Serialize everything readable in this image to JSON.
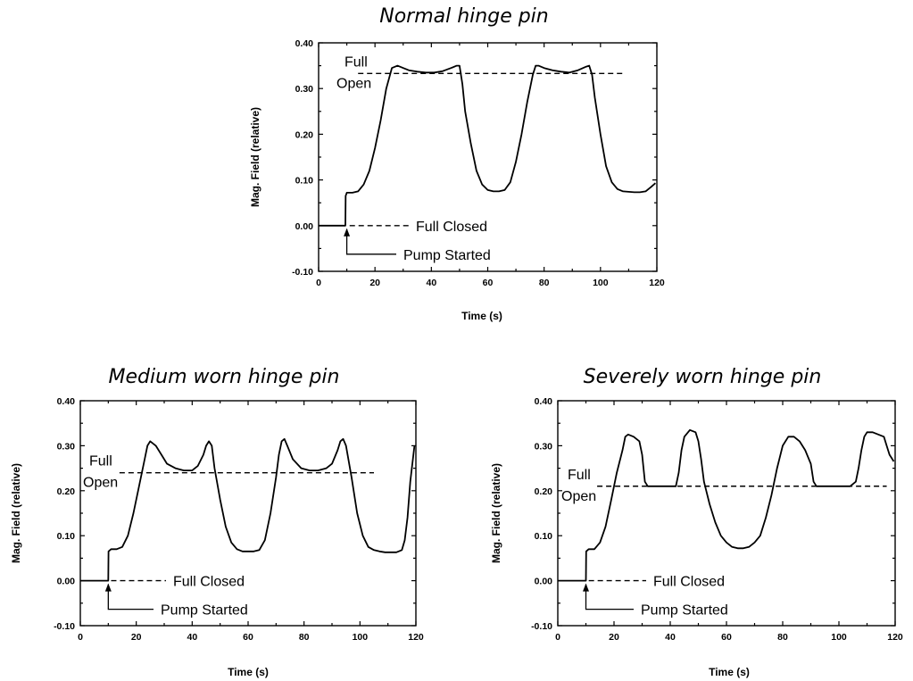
{
  "chart_data": [
    {
      "type": "line",
      "title": "Normal hinge pin",
      "xlabel": "Time (s)",
      "ylabel": "Mag. Field (relative)",
      "xlim": [
        0,
        120
      ],
      "ylim": [
        -0.1,
        0.4
      ],
      "x_ticks": [
        "0",
        "20",
        "40",
        "60",
        "80",
        "100",
        "120"
      ],
      "y_ticks": [
        "-0.10",
        "0.00",
        "0.10",
        "0.20",
        "0.30",
        "0.40"
      ],
      "full_open_level": 0.333,
      "full_closed_level": 0.0,
      "pump_start_time": 10,
      "annotations": {
        "full_open_1": "Full",
        "full_open_2": "Open",
        "full_closed": "Full Closed",
        "pump_started": "Pump Started"
      },
      "series": [
        {
          "x": [
            0,
            9.5,
            9.6,
            10,
            12,
            14,
            16,
            18,
            20,
            22,
            24,
            26,
            28,
            30,
            32,
            35,
            38,
            41,
            44,
            47,
            49,
            50,
            51,
            52,
            54,
            56,
            58,
            60,
            62,
            64,
            66,
            68,
            70,
            72,
            74,
            76,
            77,
            78,
            80,
            83,
            86,
            89,
            92,
            95,
            96,
            97,
            98,
            100,
            102,
            104,
            106,
            108,
            110,
            112,
            114,
            116,
            118,
            119.5
          ],
          "y": [
            0.0,
            0.0,
            0.065,
            0.072,
            0.072,
            0.075,
            0.09,
            0.12,
            0.17,
            0.23,
            0.3,
            0.345,
            0.35,
            0.345,
            0.34,
            0.337,
            0.335,
            0.335,
            0.338,
            0.345,
            0.35,
            0.35,
            0.31,
            0.25,
            0.18,
            0.12,
            0.09,
            0.078,
            0.075,
            0.075,
            0.078,
            0.095,
            0.14,
            0.2,
            0.27,
            0.33,
            0.35,
            0.35,
            0.345,
            0.34,
            0.337,
            0.335,
            0.34,
            0.348,
            0.35,
            0.33,
            0.28,
            0.2,
            0.13,
            0.095,
            0.08,
            0.075,
            0.074,
            0.073,
            0.073,
            0.075,
            0.085,
            0.093
          ]
        }
      ]
    },
    {
      "type": "line",
      "title": "Medium worn hinge pin",
      "xlabel": "Time (s)",
      "ylabel": "Mag. Field (relative)",
      "xlim": [
        0,
        120
      ],
      "ylim": [
        -0.1,
        0.4
      ],
      "x_ticks": [
        "0",
        "20",
        "40",
        "60",
        "80",
        "100",
        "120"
      ],
      "y_ticks": [
        "-0.10",
        "0.00",
        "0.10",
        "0.20",
        "0.30",
        "0.40"
      ],
      "full_open_level": 0.24,
      "full_closed_level": 0.0,
      "pump_start_time": 10,
      "annotations": {
        "full_open_1": "Full",
        "full_open_2": "Open",
        "full_closed": "Full Closed",
        "pump_started": "Pump Started"
      },
      "series": [
        {
          "x": [
            0,
            10,
            10.1,
            11,
            13,
            15,
            17,
            19,
            21,
            23,
            24,
            25,
            27,
            29,
            31,
            34,
            37,
            40,
            42,
            44,
            45,
            46,
            47,
            48,
            50,
            52,
            54,
            56,
            58,
            60,
            62,
            64,
            66,
            68,
            70,
            71,
            72,
            73,
            74,
            76,
            79,
            82,
            85,
            88,
            90,
            92,
            93,
            94,
            95,
            97,
            99,
            101,
            103,
            105,
            107,
            109,
            111,
            113,
            115,
            116,
            117,
            118,
            119.5
          ],
          "y": [
            0.0,
            0.0,
            0.065,
            0.07,
            0.07,
            0.075,
            0.1,
            0.15,
            0.21,
            0.27,
            0.3,
            0.31,
            0.3,
            0.28,
            0.26,
            0.25,
            0.245,
            0.245,
            0.255,
            0.28,
            0.3,
            0.31,
            0.3,
            0.25,
            0.18,
            0.12,
            0.085,
            0.07,
            0.065,
            0.065,
            0.065,
            0.068,
            0.09,
            0.15,
            0.23,
            0.28,
            0.31,
            0.315,
            0.3,
            0.27,
            0.25,
            0.245,
            0.245,
            0.25,
            0.26,
            0.29,
            0.31,
            0.315,
            0.3,
            0.23,
            0.15,
            0.1,
            0.075,
            0.068,
            0.065,
            0.063,
            0.063,
            0.063,
            0.068,
            0.09,
            0.14,
            0.22,
            0.3
          ]
        }
      ]
    },
    {
      "type": "line",
      "title": "Severely worn hinge pin",
      "xlabel": "Time (s)",
      "ylabel": "Mag. Field (relative)",
      "xlim": [
        0,
        120
      ],
      "ylim": [
        -0.1,
        0.4
      ],
      "x_ticks": [
        "0",
        "20",
        "40",
        "60",
        "80",
        "100",
        "120"
      ],
      "y_ticks": [
        "-0.10",
        "0.00",
        "0.10",
        "0.20",
        "0.30",
        "0.40"
      ],
      "full_open_level": 0.21,
      "full_closed_level": 0.0,
      "pump_start_time": 10,
      "annotations": {
        "full_open_1": "Full",
        "full_open_2": "Open",
        "full_closed": "Full Closed",
        "pump_started": "Pump Started"
      },
      "series": [
        {
          "x": [
            0,
            10,
            10.1,
            11,
            13,
            15,
            17,
            19,
            21,
            23,
            24,
            25,
            27,
            29,
            30,
            31,
            32,
            33,
            36,
            39,
            42,
            43,
            44,
            45,
            47,
            49,
            50,
            51,
            52,
            54,
            56,
            58,
            60,
            62,
            64,
            66,
            68,
            70,
            72,
            74,
            76,
            78,
            80,
            82,
            84,
            86,
            88,
            90,
            91,
            92,
            93,
            96,
            100,
            104,
            106,
            107,
            108,
            109,
            110,
            112,
            114,
            116,
            117,
            118,
            119,
            119.5
          ],
          "y": [
            0.0,
            0.0,
            0.065,
            0.07,
            0.07,
            0.085,
            0.12,
            0.18,
            0.24,
            0.29,
            0.32,
            0.325,
            0.32,
            0.31,
            0.28,
            0.22,
            0.21,
            0.21,
            0.21,
            0.21,
            0.21,
            0.24,
            0.29,
            0.32,
            0.335,
            0.33,
            0.31,
            0.27,
            0.22,
            0.17,
            0.13,
            0.1,
            0.085,
            0.075,
            0.072,
            0.072,
            0.075,
            0.085,
            0.1,
            0.14,
            0.19,
            0.25,
            0.3,
            0.32,
            0.32,
            0.31,
            0.29,
            0.26,
            0.22,
            0.21,
            0.21,
            0.21,
            0.21,
            0.21,
            0.22,
            0.25,
            0.29,
            0.32,
            0.33,
            0.33,
            0.325,
            0.32,
            0.3,
            0.28,
            0.27,
            0.265
          ]
        }
      ]
    }
  ]
}
